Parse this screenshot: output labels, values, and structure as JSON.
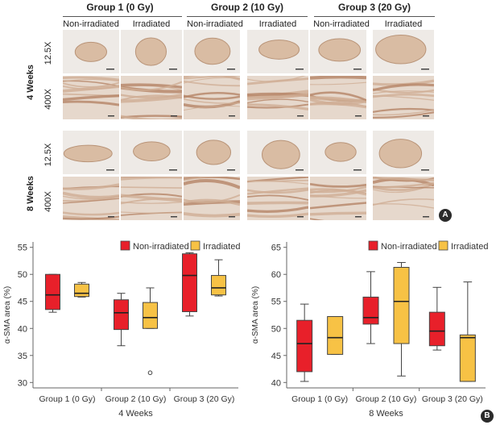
{
  "panel_a": {
    "badge": "A",
    "groups": [
      {
        "title": "Group 1 (0 Gy)",
        "cols": [
          "Non-irradiated",
          "Irradiated"
        ]
      },
      {
        "title": "Group 2 (10 Gy)",
        "cols": [
          "Non-irradiated",
          "Irradiated"
        ]
      },
      {
        "title": "Group 3 (20 Gy)",
        "cols": [
          "Non-irradiated",
          "Irradiated"
        ]
      }
    ],
    "timepoints": [
      "4 Weeks",
      "8 Weeks"
    ],
    "magnifications": [
      "12.5X",
      "400X"
    ]
  },
  "panel_b": {
    "badge": "B",
    "legend": {
      "non_irradiated": "Non-irradiated",
      "irradiated": "Irradiated"
    },
    "colors": {
      "non_irradiated": "#e8202a",
      "irradiated": "#f7c245"
    }
  },
  "chart_data": [
    {
      "type": "boxplot",
      "title": "",
      "xlabel": "4 Weeks",
      "ylabel": "α-SMA area (%)",
      "ylim": [
        29,
        56
      ],
      "yticks": [
        30,
        35,
        40,
        45,
        50,
        55
      ],
      "categories": [
        "Group 1 (0 Gy)",
        "Group 2 (10 Gy)",
        "Group 3 (20 Gy)"
      ],
      "legend_position": "top-right",
      "series": [
        {
          "name": "Non-irradiated",
          "boxes": [
            {
              "min": 43.0,
              "q1": 43.5,
              "median": 46.2,
              "q3": 50.0,
              "max": 50.0,
              "outliers": []
            },
            {
              "min": 36.8,
              "q1": 39.8,
              "median": 42.9,
              "q3": 45.3,
              "max": 46.5,
              "outliers": []
            },
            {
              "min": 42.3,
              "q1": 43.1,
              "median": 49.8,
              "q3": 53.8,
              "max": 54.0,
              "outliers": []
            }
          ]
        },
        {
          "name": "Irradiated",
          "boxes": [
            {
              "min": 45.8,
              "q1": 45.9,
              "median": 46.5,
              "q3": 48.2,
              "max": 48.5,
              "outliers": []
            },
            {
              "min": 40.0,
              "q1": 40.0,
              "median": 42.0,
              "q3": 44.8,
              "max": 47.5,
              "outliers": [
                31.8
              ]
            },
            {
              "min": 46.0,
              "q1": 46.2,
              "median": 47.5,
              "q3": 49.8,
              "max": 52.7,
              "outliers": []
            }
          ]
        }
      ]
    },
    {
      "type": "boxplot",
      "title": "",
      "xlabel": "8 Weeks",
      "ylabel": "α-SMA area (%)",
      "ylim": [
        39,
        66
      ],
      "yticks": [
        40,
        45,
        50,
        55,
        60,
        65
      ],
      "categories": [
        "Group 1 (0 Gy)",
        "Group 2 (10 Gy)",
        "Group 3 (20 Gy)"
      ],
      "legend_position": "top-right",
      "series": [
        {
          "name": "Non-irradiated",
          "boxes": [
            {
              "min": 40.2,
              "q1": 42.0,
              "median": 47.2,
              "q3": 51.5,
              "max": 54.5,
              "outliers": []
            },
            {
              "min": 47.2,
              "q1": 50.8,
              "median": 52.0,
              "q3": 55.8,
              "max": 60.5,
              "outliers": []
            },
            {
              "min": 46.0,
              "q1": 46.8,
              "median": 49.5,
              "q3": 53.0,
              "max": 57.6,
              "outliers": []
            }
          ]
        },
        {
          "name": "Irradiated",
          "boxes": [
            {
              "min": 45.2,
              "q1": 45.2,
              "median": 48.3,
              "q3": 52.2,
              "max": 52.2,
              "outliers": []
            },
            {
              "min": 41.2,
              "q1": 47.2,
              "median": 55.0,
              "q3": 61.3,
              "max": 62.2,
              "outliers": []
            },
            {
              "min": 40.2,
              "q1": 40.2,
              "median": 48.3,
              "q3": 48.8,
              "max": 58.6,
              "outliers": []
            }
          ]
        }
      ]
    }
  ]
}
